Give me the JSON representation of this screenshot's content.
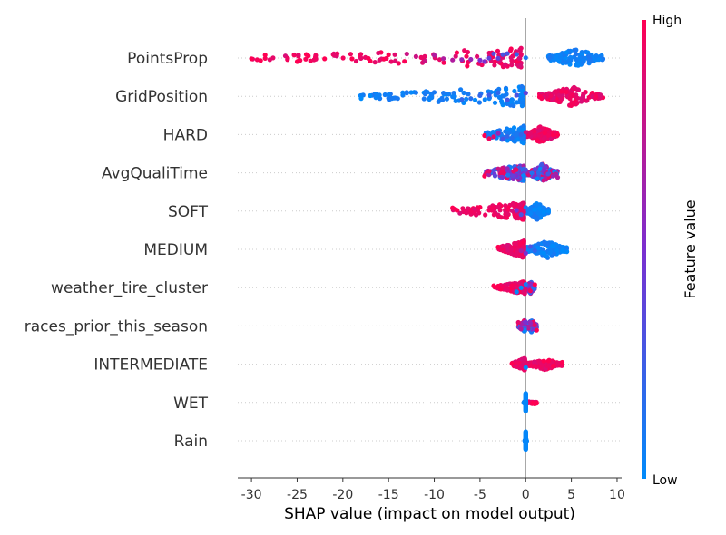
{
  "chart_data": {
    "type": "scatter",
    "subtype": "shap-beeswarm",
    "xlabel": "SHAP value (impact on model output)",
    "xlim": [
      -31.5,
      10.5
    ],
    "xticks": [
      -30,
      -25,
      -20,
      -15,
      -10,
      -5,
      0,
      5,
      10
    ],
    "colorbar": {
      "label": "Feature value",
      "high_label": "High",
      "low_label": "Low",
      "low_color": "#008bfb",
      "mid_color": "#7b2fd0",
      "high_color": "#ff0052"
    },
    "grid": false,
    "features": [
      {
        "name": "PointsProp",
        "neg_range": [
          -30,
          -0.5
        ],
        "pos_range": [
          2.5,
          8.5
        ],
        "neg_color": "high",
        "pos_color": "low",
        "spread": "wide",
        "dots": [
          [
            -30,
            1.0
          ],
          [
            -29,
            1.0
          ],
          [
            -28.5,
            1.0
          ],
          [
            -28,
            0.9
          ],
          [
            -25,
            1.0
          ],
          [
            -24,
            1.0
          ],
          [
            -23,
            0.95
          ],
          [
            -22,
            1.0
          ],
          [
            -21,
            0.9
          ],
          [
            -19,
            1.0
          ],
          [
            -18,
            0.9
          ],
          [
            -17,
            1.0
          ],
          [
            -16,
            0.9
          ],
          [
            -15,
            1.0
          ],
          [
            -13,
            0.8
          ],
          [
            -12,
            0.8
          ],
          [
            -11,
            0.8
          ],
          [
            -10,
            0.7
          ],
          [
            -9,
            0.7
          ],
          [
            -8,
            0.7
          ],
          [
            -7,
            0.6
          ],
          [
            -6,
            0.6
          ],
          [
            -5,
            0.5
          ],
          [
            -4.5,
            0.5
          ],
          [
            -4,
            0.4
          ],
          [
            -3.5,
            0.35
          ],
          [
            -3,
            0.4
          ],
          [
            -2.5,
            0.3
          ],
          [
            -2,
            0.3
          ],
          [
            -1,
            0.2
          ],
          [
            0,
            0.1
          ]
        ]
      },
      {
        "name": "GridPosition",
        "neg_range": [
          -18.5,
          -0.3
        ],
        "pos_range": [
          1.5,
          8.5
        ],
        "neg_color": "low",
        "pos_color": "high",
        "spread": "wide",
        "dots": [
          [
            -18,
            0.0
          ],
          [
            -17,
            0.0
          ],
          [
            -16,
            0.05
          ],
          [
            -15,
            0.05
          ],
          [
            -14,
            0.1
          ],
          [
            -13,
            0.1
          ],
          [
            -12,
            0.1
          ],
          [
            -11,
            0.1
          ],
          [
            -10,
            0.1
          ],
          [
            -9,
            0.1
          ],
          [
            -7,
            0.2
          ],
          [
            -6,
            0.15
          ],
          [
            -5,
            0.2
          ],
          [
            -4,
            0.25
          ],
          [
            -3,
            0.2
          ],
          [
            -2,
            0.3
          ],
          [
            -1,
            0.3
          ],
          [
            0,
            0.4
          ]
        ]
      },
      {
        "name": "HARD",
        "neg_range": [
          -4.5,
          -0.2
        ],
        "pos_range": [
          0.1,
          3.5
        ],
        "neg_color": "low",
        "pos_color": "high",
        "spread": "medium",
        "dots": [
          [
            -4.5,
            1.0
          ],
          [
            -4,
            0.95
          ],
          [
            -3.5,
            0.9
          ],
          [
            -3,
            0.6
          ],
          [
            -2.5,
            0.3
          ],
          [
            -2,
            0.2
          ],
          [
            -1.5,
            0.15
          ],
          [
            -1,
            0.1
          ],
          [
            -0.5,
            0.2
          ],
          [
            0,
            0.8
          ],
          [
            0.5,
            0.9
          ],
          [
            1,
            0.9
          ],
          [
            1.5,
            0.85
          ],
          [
            2,
            0.9
          ],
          [
            2.5,
            0.95
          ],
          [
            3,
            1.0
          ],
          [
            3.5,
            1.0
          ]
        ]
      },
      {
        "name": "AvgQualiTime",
        "neg_range": [
          -4.5,
          -0.2
        ],
        "pos_range": [
          0.1,
          3.5
        ],
        "neg_color": "mixed",
        "pos_color": "mixed",
        "spread": "medium",
        "dots": [
          [
            -4.5,
            1.0
          ],
          [
            -4,
            0.9
          ],
          [
            -3,
            0.8
          ],
          [
            -2,
            0.6
          ],
          [
            -1,
            0.5
          ],
          [
            0,
            0.3
          ],
          [
            1,
            0.4
          ],
          [
            2,
            0.5
          ],
          [
            3,
            0.6
          ],
          [
            3.5,
            0.7
          ]
        ]
      },
      {
        "name": "SOFT",
        "neg_range": [
          -8,
          -0.2
        ],
        "pos_range": [
          0.1,
          2.5
        ],
        "neg_color": "high",
        "pos_color": "low",
        "spread": "medium",
        "dots": [
          [
            -8,
            1.0
          ],
          [
            -7.5,
            1.0
          ],
          [
            -5,
            1.0
          ],
          [
            -4,
            0.95
          ],
          [
            -3,
            0.9
          ],
          [
            -2,
            0.9
          ],
          [
            -1.5,
            0.85
          ],
          [
            -1,
            0.5
          ],
          [
            -0.5,
            0.3
          ],
          [
            0,
            0.1
          ],
          [
            1,
            0.0
          ],
          [
            1.5,
            0.0
          ],
          [
            2,
            0.0
          ],
          [
            2.5,
            0.0
          ]
        ]
      },
      {
        "name": "MEDIUM",
        "neg_range": [
          -3,
          -0.2
        ],
        "pos_range": [
          0.1,
          4.5
        ],
        "neg_color": "high",
        "pos_color": "low",
        "spread": "medium",
        "dots": [
          [
            -3,
            1.0
          ],
          [
            -2.5,
            0.9
          ],
          [
            -2,
            0.85
          ],
          [
            -1.5,
            0.9
          ],
          [
            -1,
            0.9
          ],
          [
            -0.5,
            0.7
          ],
          [
            0,
            0.5
          ],
          [
            0.5,
            0.3
          ],
          [
            1,
            0.2
          ],
          [
            2,
            0.0
          ],
          [
            3,
            0.0
          ],
          [
            4,
            0.0
          ],
          [
            4.5,
            0.0
          ]
        ]
      },
      {
        "name": "weather_tire_cluster",
        "neg_range": [
          -3.5,
          -0.1
        ],
        "pos_range": [
          0.1,
          1
        ],
        "neg_color": "high",
        "pos_color": "mixed",
        "spread": "narrow",
        "dots": [
          [
            -3.5,
            1.0
          ],
          [
            -3,
            1.0
          ],
          [
            -1,
            0.0
          ],
          [
            -0.5,
            0.0
          ],
          [
            0,
            0.1
          ],
          [
            0.5,
            0.95
          ],
          [
            1,
            1.0
          ]
        ]
      },
      {
        "name": "races_prior_this_season",
        "neg_range": [
          -0.8,
          -0.1
        ],
        "pos_range": [
          0.1,
          1.2
        ],
        "neg_color": "mixed",
        "pos_color": "mixed",
        "spread": "narrow",
        "dots": [
          [
            -0.8,
            0.9
          ],
          [
            -0.5,
            0.7
          ],
          [
            0,
            0.5
          ],
          [
            0.5,
            0.6
          ],
          [
            1,
            0.9
          ],
          [
            1.2,
            1.0
          ]
        ]
      },
      {
        "name": "INTERMEDIATE",
        "neg_range": [
          -1.5,
          -0.1
        ],
        "pos_range": [
          0.1,
          4
        ],
        "neg_color": "high",
        "pos_color": "high",
        "spread": "narrow",
        "dots": [
          [
            -1.5,
            1.0
          ],
          [
            -1,
            0.95
          ],
          [
            -0.5,
            0.9
          ],
          [
            0,
            0.0
          ],
          [
            1,
            0.95
          ],
          [
            2,
            1.0
          ],
          [
            2.5,
            1.0
          ],
          [
            3,
            1.0
          ],
          [
            4,
            1.0
          ]
        ]
      },
      {
        "name": "WET",
        "neg_range": [
          -0.2,
          -0.05
        ],
        "pos_range": [
          0.05,
          1.2
        ],
        "neg_color": "low",
        "pos_color": "high",
        "spread": "line",
        "dots": [
          [
            0,
            0.0
          ],
          [
            0.8,
            1.0
          ],
          [
            1,
            1.0
          ],
          [
            1.2,
            1.0
          ]
        ]
      },
      {
        "name": "Rain",
        "neg_range": [
          -0.1,
          -0.02
        ],
        "pos_range": [
          0.02,
          0.1
        ],
        "neg_color": "low",
        "pos_color": "low",
        "spread": "line",
        "dots": [
          [
            0,
            0.0
          ]
        ]
      }
    ]
  }
}
